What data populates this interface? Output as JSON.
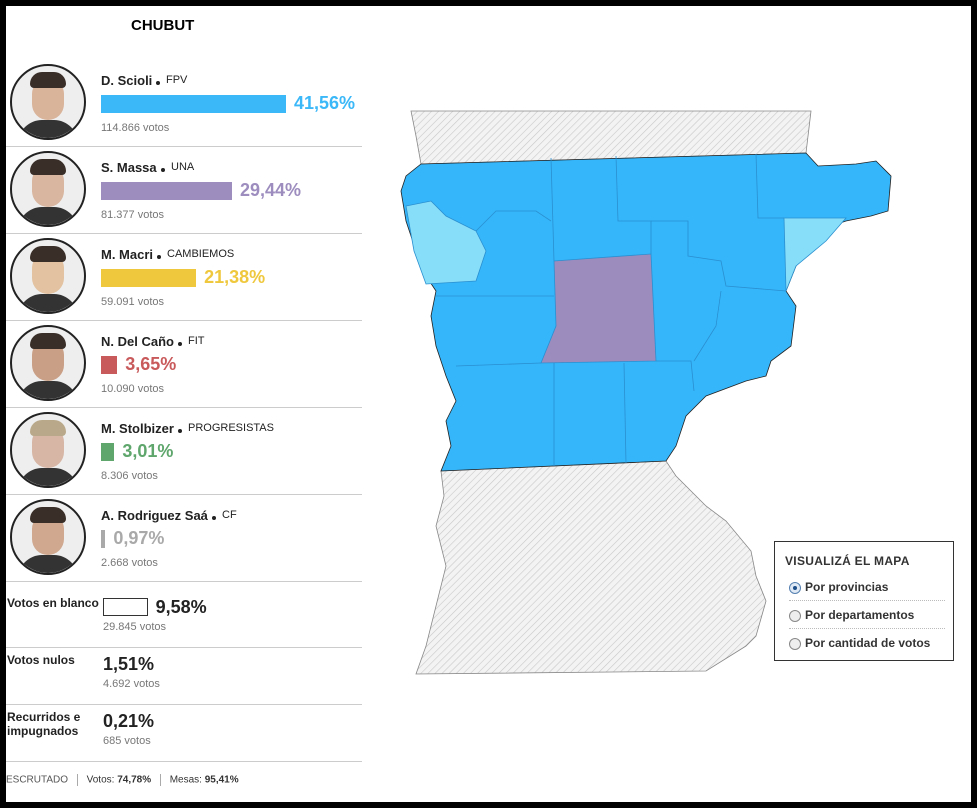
{
  "title": "CHUBUT",
  "candidates": [
    {
      "name": "D. Scioli",
      "party": "FPV",
      "value": 41.56,
      "value_label": "41,56%",
      "votes": "114.866 votos",
      "color": "#3bb8f8"
    },
    {
      "name": "S. Massa",
      "party": "UNA",
      "value": 29.44,
      "value_label": "29,44%",
      "votes": "81.377 votos",
      "color": "#9d8dbf"
    },
    {
      "name": "M. Macri",
      "party": "CAMBIEMOS",
      "value": 21.38,
      "value_label": "21,38%",
      "votes": "59.091 votos",
      "color": "#efc83e"
    },
    {
      "name": "N. Del Caño",
      "party": "FIT",
      "value": 3.65,
      "value_label": "3,65%",
      "votes": "10.090 votos",
      "color": "#c95a5c"
    },
    {
      "name": "M. Stolbizer",
      "party": "PROGRESISTAS",
      "value": 3.01,
      "value_label": "3,01%",
      "votes": "8.306 votos",
      "color": "#5ea66c"
    },
    {
      "name": "A. Rodriguez Saá",
      "party": "CF",
      "value": 0.97,
      "value_label": "0,97%",
      "votes": "2.668 votos",
      "color": "#a9a9a9"
    }
  ],
  "blank": {
    "label": "Votos en blanco",
    "value": 9.58,
    "value_label": "9,58%",
    "votes": "29.845 votos"
  },
  "null": {
    "label": "Votos nulos",
    "value_label": "1,51%",
    "votes": "4.692 votos"
  },
  "contested": {
    "label": "Recurridos e impugnados",
    "value_label": "0,21%",
    "votes": "685 votos"
  },
  "footer": {
    "status": "ESCRUTADO",
    "votes_label": "Votos:",
    "votes_value": "74,78%",
    "tables_label": "Mesas:",
    "tables_value": "95,41%"
  },
  "map_legend": {
    "title": "VISUALIZÁ EL MAPA",
    "options": [
      "Por provincias",
      "Por departamentos",
      "Por cantidad de votos"
    ]
  }
}
